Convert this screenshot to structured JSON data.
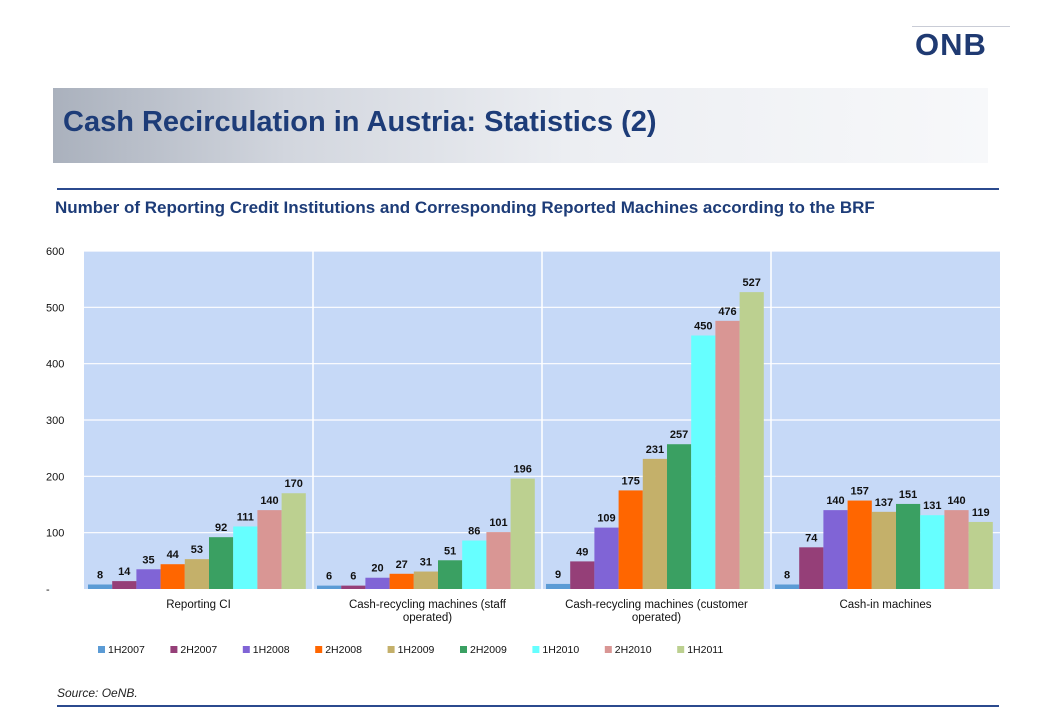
{
  "header": {
    "logo_text": "ONB",
    "title": "Cash Recirculation in Austria: Statistics (2)",
    "subtitle": "Number of Reporting Credit Institutions and Corresponding Reported Machines according to the BRF",
    "source": "Source: OeNB."
  },
  "chart_data": {
    "type": "bar",
    "categories": [
      [
        "Reporting CI"
      ],
      [
        "Cash-recycling machines (staff",
        "operated)"
      ],
      [
        "Cash-recycling machines (customer",
        "operated)"
      ],
      [
        "Cash-in machines"
      ]
    ],
    "series": [
      {
        "name": "1H2007",
        "color": "#5b9bd5",
        "values": [
          8,
          6,
          9,
          8
        ]
      },
      {
        "name": "2H2007",
        "color": "#953f78",
        "values": [
          14,
          6,
          49,
          74
        ]
      },
      {
        "name": "1H2008",
        "color": "#8064d6",
        "values": [
          35,
          20,
          109,
          140
        ]
      },
      {
        "name": "2H2008",
        "color": "#ff6600",
        "values": [
          44,
          27,
          175,
          157
        ]
      },
      {
        "name": "1H2009",
        "color": "#c4b06a",
        "values": [
          53,
          31,
          231,
          137
        ]
      },
      {
        "name": "2H2009",
        "color": "#3aa062",
        "values": [
          92,
          51,
          257,
          151
        ]
      },
      {
        "name": "1H2010",
        "color": "#66ffff",
        "values": [
          111,
          86,
          450,
          131
        ]
      },
      {
        "name": "2H2010",
        "color": "#d99694",
        "values": [
          140,
          101,
          476,
          140
        ]
      },
      {
        "name": "1H2011",
        "color": "#bcd090",
        "values": [
          170,
          196,
          527,
          119
        ]
      }
    ],
    "ylim": [
      0,
      600
    ],
    "yticks": [
      "-",
      "100",
      "200",
      "300",
      "400",
      "500",
      "600"
    ],
    "plot_background": "#c6d9f7",
    "grid": true,
    "legend_position": "bottom"
  }
}
